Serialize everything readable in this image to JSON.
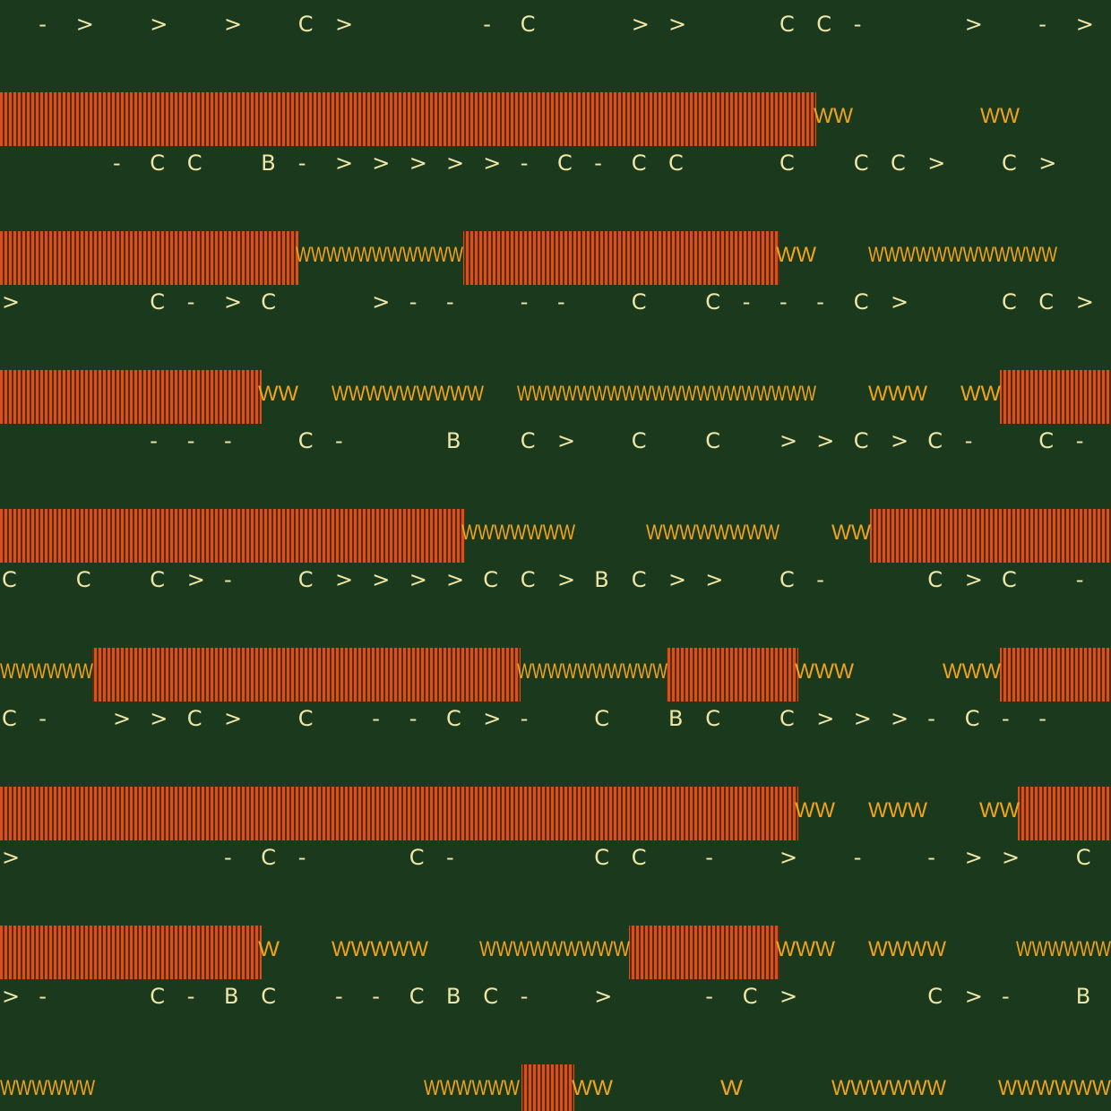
{
  "glyph_rows": [
    " -> > > C>   -C  >>  CC-  > ->",
    "   -CC B->>>>>-C-CC  C CC> C> ",
    ">   C->C  >-- -- C C---C>  CC>",
    "    --- C-  B C> C C >>C>C- C-",
    "C C C>- C>>>>CC>BC>> C-  C>C -",
    "C- >>C> C --C>- C BC C>>>-C-- ",
    ">     -C-  C-   CC - > - ->> C",
    ">-  C-BC --CBC- >  -C>   C>- B"
  ],
  "zigzag_rows": [
    [
      "WW",
      "WW"
    ],
    [
      "WWWWWWWWWWW",
      "WW",
      "WWWWWWWWWWWW"
    ],
    [
      "WW",
      "WWWWWWWWW",
      "WWWWWWWWWWWWWWWWWWWW",
      "WWW",
      "WW"
    ],
    [
      "WWWWWWW",
      "WWWWWWWW",
      "WW"
    ],
    [
      "WWWWWW",
      "WWWWWWWWWW",
      "WWW",
      "WWW"
    ],
    [
      "WW",
      "WWW",
      "WW"
    ],
    [
      "W",
      "WWWWW",
      "WWWWWWWWW",
      "WWW",
      "WWWW",
      "WWWWWW"
    ],
    [
      "WWWWWW",
      "WWWWWW",
      "WW",
      "W",
      "WWWWWW",
      "WWWWWW"
    ]
  ]
}
